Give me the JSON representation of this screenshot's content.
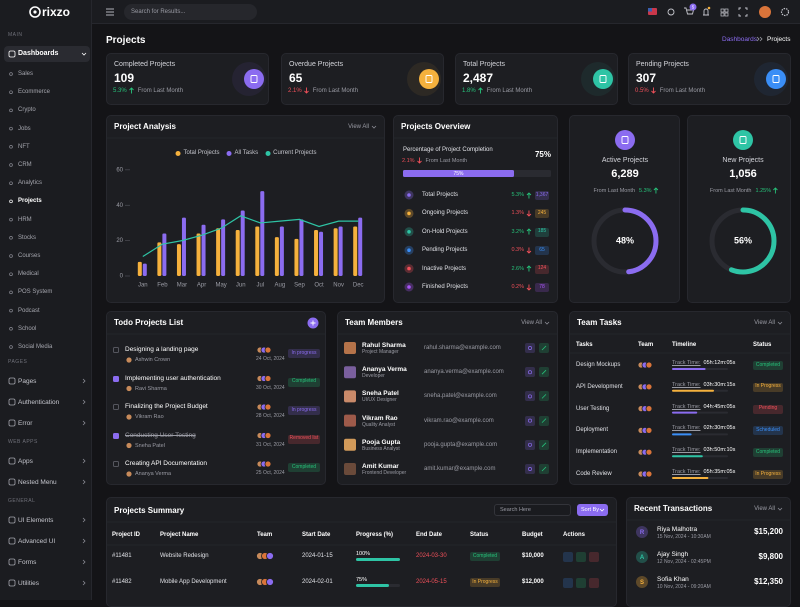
{
  "sidebar": {
    "logo": "rixzo",
    "main_title": "MAIN",
    "main_item": "Dashboards",
    "sub_items": [
      {
        "label": "Sales"
      },
      {
        "label": "Ecommerce"
      },
      {
        "label": "Crypto"
      },
      {
        "label": "Jobs"
      },
      {
        "label": "NFT"
      },
      {
        "label": "CRM"
      },
      {
        "label": "Analytics"
      },
      {
        "label": "Projects",
        "active": true
      },
      {
        "label": "HRM"
      },
      {
        "label": "Stocks"
      },
      {
        "label": "Courses"
      },
      {
        "label": "Medical"
      },
      {
        "label": "POS System"
      },
      {
        "label": "Podcast"
      },
      {
        "label": "School"
      },
      {
        "label": "Social Media"
      }
    ],
    "groups": [
      {
        "title": "PAGES",
        "items": [
          "Pages",
          "Authentication",
          "Error"
        ]
      },
      {
        "title": "WEB APPS",
        "items": [
          "Apps",
          "Nested Menu"
        ]
      },
      {
        "title": "GENERAL",
        "items": [
          "UI Elements",
          "Advanced UI",
          "Forms",
          "Utilities"
        ]
      }
    ]
  },
  "header": {
    "search_placeholder": "Search for Results...",
    "cart_count": "5"
  },
  "page": {
    "title": "Projects",
    "breadcrumb": [
      "Dashboards",
      "Projects"
    ]
  },
  "stats": [
    {
      "title": "Completed Projects",
      "value": "109",
      "change": "5.3%",
      "trend": "up",
      "note": "From Last Month",
      "color": "#8b6cf0"
    },
    {
      "title": "Overdue Projects",
      "value": "65",
      "change": "2.1%",
      "trend": "down",
      "note": "From Last Month",
      "color": "#f5b13d"
    },
    {
      "title": "Total Projects",
      "value": "2,487",
      "change": "1.8%",
      "trend": "up",
      "note": "From Last Month",
      "color": "#2ec4a5"
    },
    {
      "title": "Pending Projects",
      "value": "307",
      "change": "0.5%",
      "trend": "down",
      "note": "From Last Month",
      "color": "#3a8ef6"
    }
  ],
  "chart_data": {
    "type": "bar",
    "title": "Project Analysis",
    "view_all": "View All",
    "categories": [
      "Jan",
      "Feb",
      "Mar",
      "Apr",
      "May",
      "Jun",
      "Jul",
      "Aug",
      "Sep",
      "Oct",
      "Nov",
      "Dec"
    ],
    "series": [
      {
        "name": "Total Projects",
        "type": "bar",
        "color": "#f5b13d",
        "values": [
          8,
          19,
          18,
          24,
          27,
          26,
          28,
          22,
          21,
          26,
          27,
          28
        ]
      },
      {
        "name": "All Tasks",
        "type": "bar",
        "color": "#8b6cf0",
        "values": [
          7,
          24,
          33,
          29,
          32,
          37,
          48,
          28,
          32,
          25,
          28,
          33
        ]
      },
      {
        "name": "Current Projects",
        "type": "line",
        "color": "#2ec4a5",
        "values": [
          11,
          18,
          20,
          23,
          27,
          34,
          30,
          31,
          32,
          28,
          31,
          31
        ]
      }
    ],
    "ylim": [
      0,
      65
    ],
    "yticks": [
      0,
      20,
      40,
      60
    ],
    "grid": false
  },
  "overview": {
    "title": "Projects Overview",
    "completion_title": "Percentage of Project Completion",
    "completion": {
      "value": 75,
      "label": "75%"
    },
    "change": "2.1%",
    "trend": "down",
    "note": "From Last Month",
    "items": [
      {
        "label": "Total Projects",
        "change": "5.3%",
        "trend": "up",
        "count": "1,367",
        "color": "#8b6cf0"
      },
      {
        "label": "Ongoing Projects",
        "change": "1.3%",
        "trend": "down",
        "count": "245",
        "color": "#f5b13d"
      },
      {
        "label": "On-Hold Projects",
        "change": "3.2%",
        "trend": "up",
        "count": "185",
        "color": "#2ec4a5"
      },
      {
        "label": "Pending Projects",
        "change": "0.3%",
        "trend": "down",
        "count": "65",
        "color": "#3a8ef6"
      },
      {
        "label": "Inactive Projects",
        "change": "2.6%",
        "trend": "up",
        "count": "124",
        "color": "#f0505a"
      },
      {
        "label": "Finished Projects",
        "change": "0.2%",
        "trend": "down",
        "count": "78",
        "color": "#a855f7"
      }
    ]
  },
  "active_projects": {
    "title": "Active Projects",
    "value": "6,289",
    "note": "From Last Month",
    "change": "5.3%",
    "trend": "up",
    "percent": {
      "value": 48,
      "label": "48%"
    },
    "color": "#8b6cf0"
  },
  "new_projects": {
    "title": "New Projects",
    "value": "1,056",
    "note": "From Last Month",
    "change": "1.25%",
    "trend": "up",
    "percent": {
      "value": 56,
      "label": "56%"
    },
    "color": "#2ec4a5"
  },
  "todo": {
    "title": "Todo Projects List",
    "items": [
      {
        "task": "Designing a landing page",
        "assignee": "Ashwin Crown",
        "date": "24 Oct, 2024",
        "status": "In progress",
        "checked": false,
        "struck": false,
        "status_color": "#8b6cf0"
      },
      {
        "task": "Implementing user authentication",
        "assignee": "Ravi Sharma",
        "date": "30 Oct, 2024",
        "status": "Completed",
        "checked": true,
        "struck": false,
        "status_color": "#27c27a"
      },
      {
        "task": "Finalizing the Project Budget",
        "assignee": "Vikram Rao",
        "date": "28 Oct, 2024",
        "status": "In progress",
        "checked": false,
        "struck": false,
        "status_color": "#8b6cf0"
      },
      {
        "task": "Conducting User Testing",
        "assignee": "Sneha Patel",
        "date": "31 Oct, 2024",
        "status": "Removed list",
        "checked": true,
        "struck": true,
        "status_color": "#f0505a"
      },
      {
        "task": "Creating API Documentation",
        "assignee": "Ananya Verma",
        "date": "25 Oct, 2024",
        "status": "Completed",
        "checked": false,
        "struck": false,
        "status_color": "#27c27a"
      }
    ]
  },
  "team_members": {
    "title": "Team Members",
    "view_all": "View All",
    "members": [
      {
        "name": "Rahul Sharma",
        "role": "Project Manager",
        "email": "rahul.sharma@example.com"
      },
      {
        "name": "Ananya Verma",
        "role": "Developer",
        "email": "ananya.verma@example.com"
      },
      {
        "name": "Sneha Patel",
        "role": "UI/UX Designer",
        "email": "sneha.patel@example.com"
      },
      {
        "name": "Vikram Rao",
        "role": "Quality Analyst",
        "email": "vikram.rao@example.com"
      },
      {
        "name": "Pooja Gupta",
        "role": "Business Analyst",
        "email": "pooja.gupta@example.com"
      },
      {
        "name": "Amit Kumar",
        "role": "Frontend Developer",
        "email": "amit.kumar@example.com"
      }
    ]
  },
  "team_tasks": {
    "title": "Team Tasks",
    "view_all": "View All",
    "columns": [
      "Tasks",
      "Team",
      "Timeline",
      "Status"
    ],
    "track_label": "Track Time:",
    "rows": [
      {
        "task": "Design Mockups",
        "time": "05h:12m:05s",
        "progress": 60,
        "status": "Completed",
        "color": "#27c27a",
        "bar_color": "#8b6cf0"
      },
      {
        "task": "API Development",
        "time": "03h:30m:15s",
        "progress": 75,
        "status": "In Progress",
        "color": "#f5b13d",
        "bar_color": "#f5b13d"
      },
      {
        "task": "User Testing",
        "time": "04h:45m:05s",
        "progress": 45,
        "status": "Pending",
        "color": "#f0505a",
        "bar_color": "#8b6cf0"
      },
      {
        "task": "Deployment",
        "time": "02h:30m:05s",
        "progress": 35,
        "status": "Scheduled",
        "color": "#3a8ef6",
        "bar_color": "#3a8ef6"
      },
      {
        "task": "Implementation",
        "time": "03h:50m:10s",
        "progress": 55,
        "status": "Completed",
        "color": "#27c27a",
        "bar_color": "#2ec4a5"
      },
      {
        "task": "Code Review",
        "time": "05h:35m:05s",
        "progress": 65,
        "status": "In Progress",
        "color": "#f5b13d",
        "bar_color": "#f5b13d"
      }
    ]
  },
  "projects_summary": {
    "title": "Projects Summary",
    "search_placeholder": "Search Here",
    "sort_label": "Sort By",
    "columns": [
      "Project ID",
      "Project Name",
      "Team",
      "Start Date",
      "Progress (%)",
      "End Date",
      "Status",
      "Budget",
      "Actions"
    ],
    "rows": [
      {
        "id": "#11481",
        "name": "Website Redesign",
        "start": "2024-01-15",
        "progress": {
          "value": 100,
          "label": "100%"
        },
        "end": "2024-03-30",
        "status": "Completed",
        "status_color": "#27c27a",
        "budget": "$10,000"
      },
      {
        "id": "#11482",
        "name": "Mobile App Development",
        "start": "2024-02-01",
        "progress": {
          "value": 75,
          "label": "75%"
        },
        "end": "2024-05-15",
        "status": "In Progress",
        "status_color": "#f5b13d",
        "budget": "$12,000"
      }
    ]
  },
  "transactions": {
    "title": "Recent Transactions",
    "view_all": "View All",
    "items": [
      {
        "initial": "R",
        "name": "Riya Malhotra",
        "date": "15 Nov, 2024 - 10:30AM",
        "amount": "$15,200",
        "color": "#8b6cf0"
      },
      {
        "initial": "A",
        "name": "Ajay Singh",
        "date": "12 Nov, 2024 - 02:45PM",
        "amount": "$9,800",
        "color": "#2ec4a5"
      },
      {
        "initial": "S",
        "name": "Sofia Khan",
        "date": "10 Nov, 2024 - 09:20AM",
        "amount": "$12,350",
        "color": "#f5b13d"
      }
    ]
  }
}
